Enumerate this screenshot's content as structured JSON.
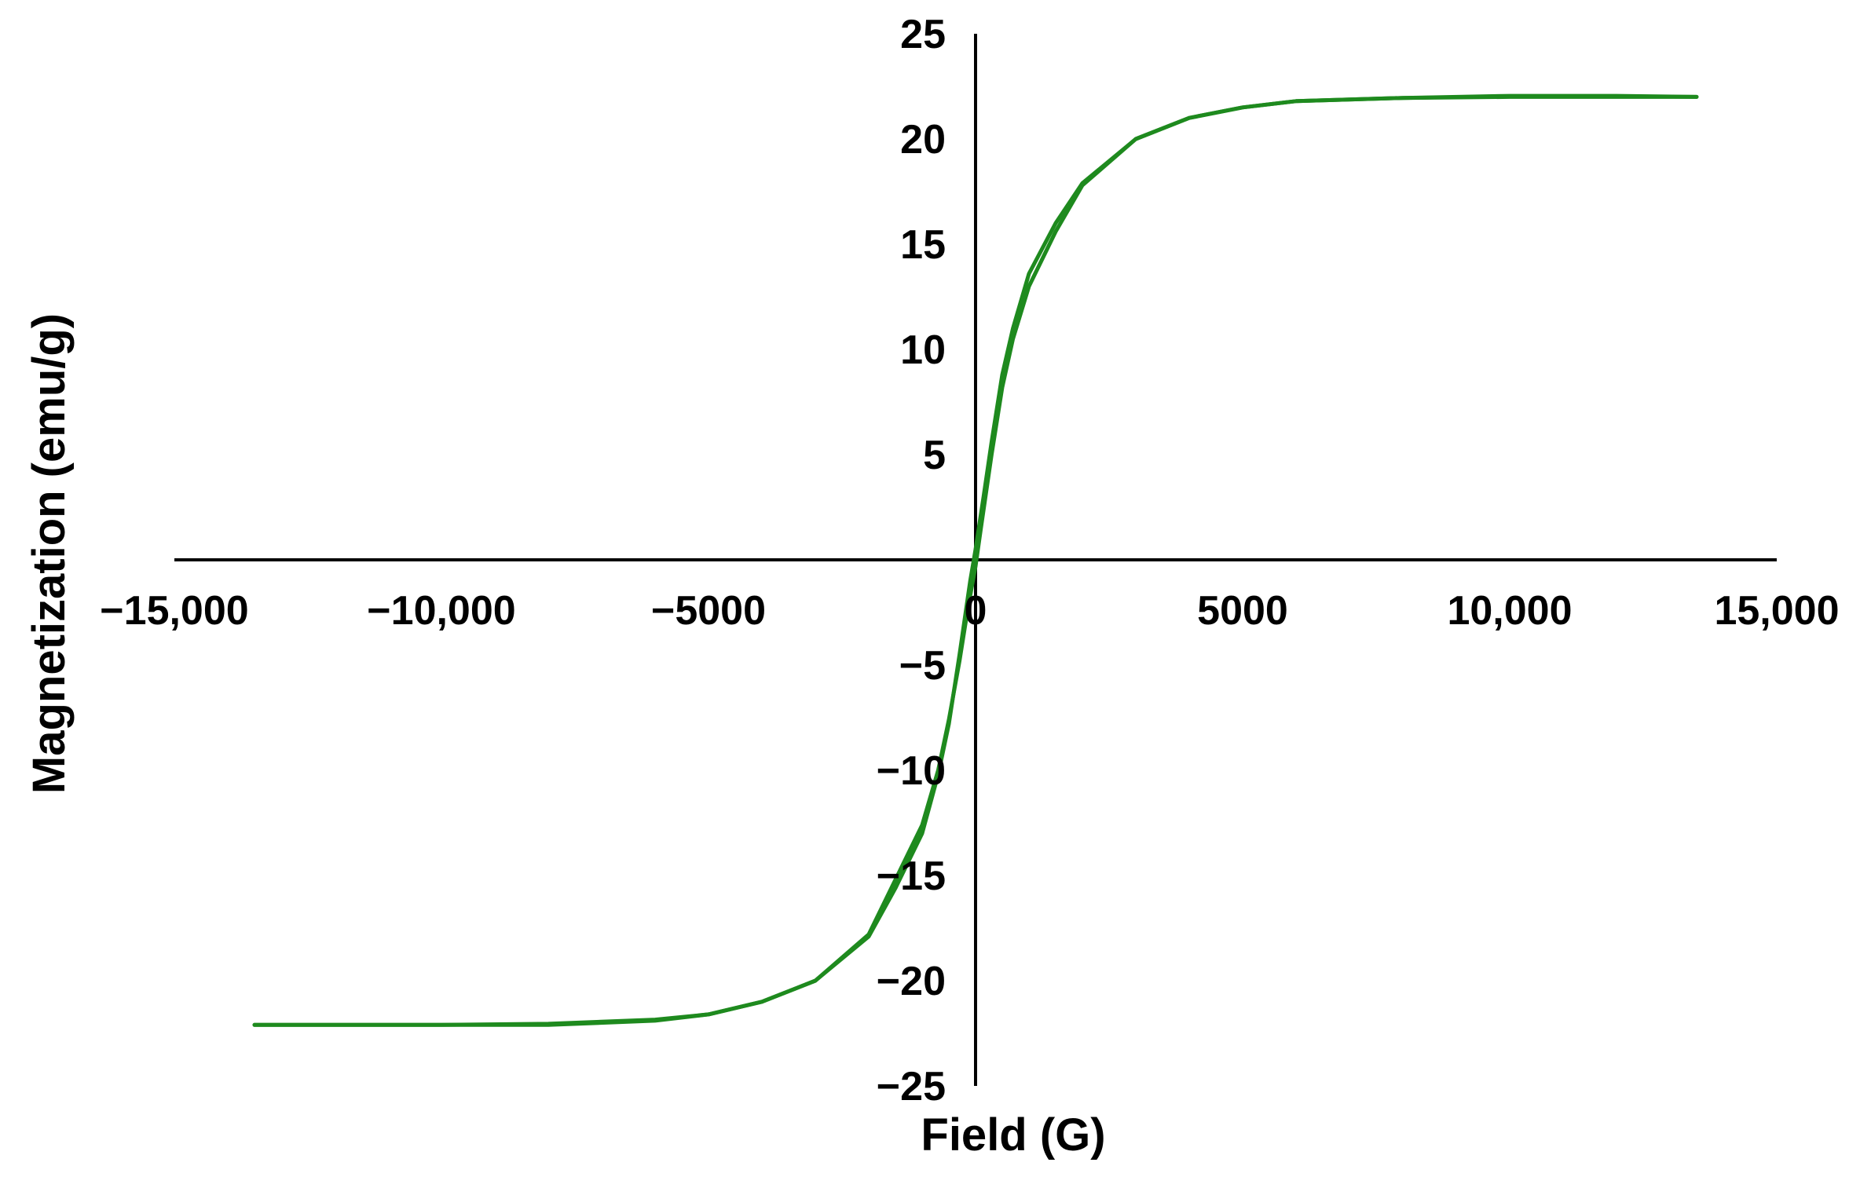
{
  "chart_data": {
    "type": "line",
    "title": "",
    "xlabel": "Field (G)",
    "ylabel": "Magnetization (emu/g)",
    "xlim": [
      -15000,
      15000
    ],
    "ylim": [
      -25,
      25
    ],
    "x_ticks": [
      {
        "value": -15000,
        "label": "−15,000"
      },
      {
        "value": -10000,
        "label": "−10,000"
      },
      {
        "value": -5000,
        "label": "−5000"
      },
      {
        "value": 0,
        "label": "0"
      },
      {
        "value": 5000,
        "label": "5000"
      },
      {
        "value": 10000,
        "label": "10,000"
      },
      {
        "value": 15000,
        "label": "15,000"
      }
    ],
    "y_ticks": [
      {
        "value": 25,
        "label": "25"
      },
      {
        "value": 20,
        "label": "20"
      },
      {
        "value": 15,
        "label": "15"
      },
      {
        "value": 10,
        "label": "10"
      },
      {
        "value": 5,
        "label": "5"
      },
      {
        "value": 0,
        "label": "0"
      },
      {
        "value": -5,
        "label": "−5"
      },
      {
        "value": -10,
        "label": "−10"
      },
      {
        "value": -15,
        "label": "−15"
      },
      {
        "value": -20,
        "label": "−20"
      },
      {
        "value": -25,
        "label": "−25"
      }
    ],
    "grid": false,
    "legend": "none",
    "color": "#1e8a1e",
    "series": [
      {
        "points": [
          [
            13500,
            22.0
          ],
          [
            12000,
            22.0
          ],
          [
            10000,
            22.0
          ],
          [
            8000,
            21.95
          ],
          [
            6000,
            21.8
          ],
          [
            5000,
            21.5
          ],
          [
            4000,
            21.0
          ],
          [
            3000,
            20.0
          ],
          [
            2000,
            17.9
          ],
          [
            1500,
            16.0
          ],
          [
            1000,
            13.6
          ],
          [
            700,
            11.0
          ],
          [
            500,
            8.8
          ],
          [
            300,
            5.6
          ],
          [
            150,
            3.0
          ],
          [
            0,
            0.5
          ],
          [
            -100,
            -1.0
          ],
          [
            -300,
            -4.5
          ],
          [
            -500,
            -7.8
          ],
          [
            -700,
            -10.2
          ],
          [
            -1000,
            -13.0
          ],
          [
            -1500,
            -15.6
          ],
          [
            -2000,
            -17.9
          ],
          [
            -3000,
            -20.0
          ],
          [
            -4000,
            -21.0
          ],
          [
            -5000,
            -21.6
          ],
          [
            -6000,
            -21.9
          ],
          [
            -8000,
            -22.1
          ],
          [
            -10000,
            -22.1
          ],
          [
            -12000,
            -22.1
          ],
          [
            -13500,
            -22.1
          ]
        ]
      },
      {
        "points": [
          [
            -13500,
            -22.1
          ],
          [
            -12000,
            -22.1
          ],
          [
            -10000,
            -22.1
          ],
          [
            -8000,
            -22.05
          ],
          [
            -6000,
            -21.85
          ],
          [
            -5000,
            -21.6
          ],
          [
            -4000,
            -21.0
          ],
          [
            -3000,
            -20.0
          ],
          [
            -2000,
            -17.8
          ],
          [
            -1500,
            -15.2
          ],
          [
            -1000,
            -12.6
          ],
          [
            -700,
            -10.0
          ],
          [
            -500,
            -7.6
          ],
          [
            -300,
            -4.8
          ],
          [
            -150,
            -2.4
          ],
          [
            0,
            -0.3
          ],
          [
            100,
            1.5
          ],
          [
            300,
            5.0
          ],
          [
            500,
            8.2
          ],
          [
            700,
            10.5
          ],
          [
            1000,
            13.0
          ],
          [
            1500,
            15.6
          ],
          [
            2000,
            17.8
          ],
          [
            3000,
            20.0
          ],
          [
            4000,
            21.0
          ],
          [
            5000,
            21.5
          ],
          [
            6000,
            21.8
          ],
          [
            8000,
            21.95
          ],
          [
            10000,
            22.05
          ],
          [
            12000,
            22.05
          ],
          [
            13500,
            22.0
          ]
        ]
      }
    ]
  }
}
